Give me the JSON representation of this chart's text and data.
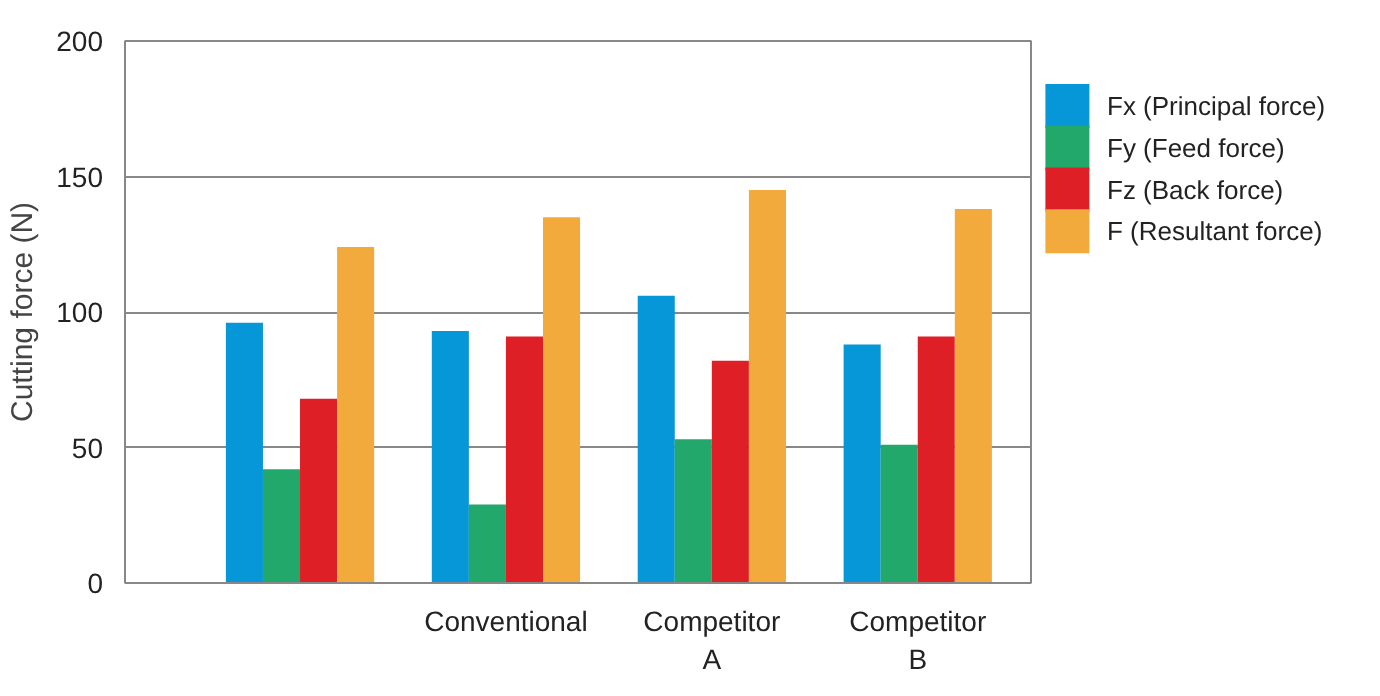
{
  "chart_data": {
    "type": "bar",
    "ylabel": "Cutting force (N)",
    "categories": [
      null,
      "Conventional",
      "Competitor A",
      "Competitor B"
    ],
    "series": [
      {
        "name": "Fx (Principal force)",
        "color": "#0597d7",
        "values": [
          96,
          93,
          106,
          88
        ]
      },
      {
        "name": "Fy (Feed force)",
        "color": "#22a86b",
        "values": [
          42,
          29,
          53,
          51
        ]
      },
      {
        "name": "Fz (Back force)",
        "color": "#de1f26",
        "values": [
          68,
          91,
          82,
          91
        ]
      },
      {
        "name": "F   (Resultant force)",
        "color": "#f2aa3c",
        "values": [
          124,
          135,
          145,
          138
        ]
      }
    ],
    "ylim": [
      0,
      200
    ],
    "yticks": [
      0,
      50,
      100,
      150,
      200
    ],
    "grid": "y",
    "legend": "right"
  }
}
